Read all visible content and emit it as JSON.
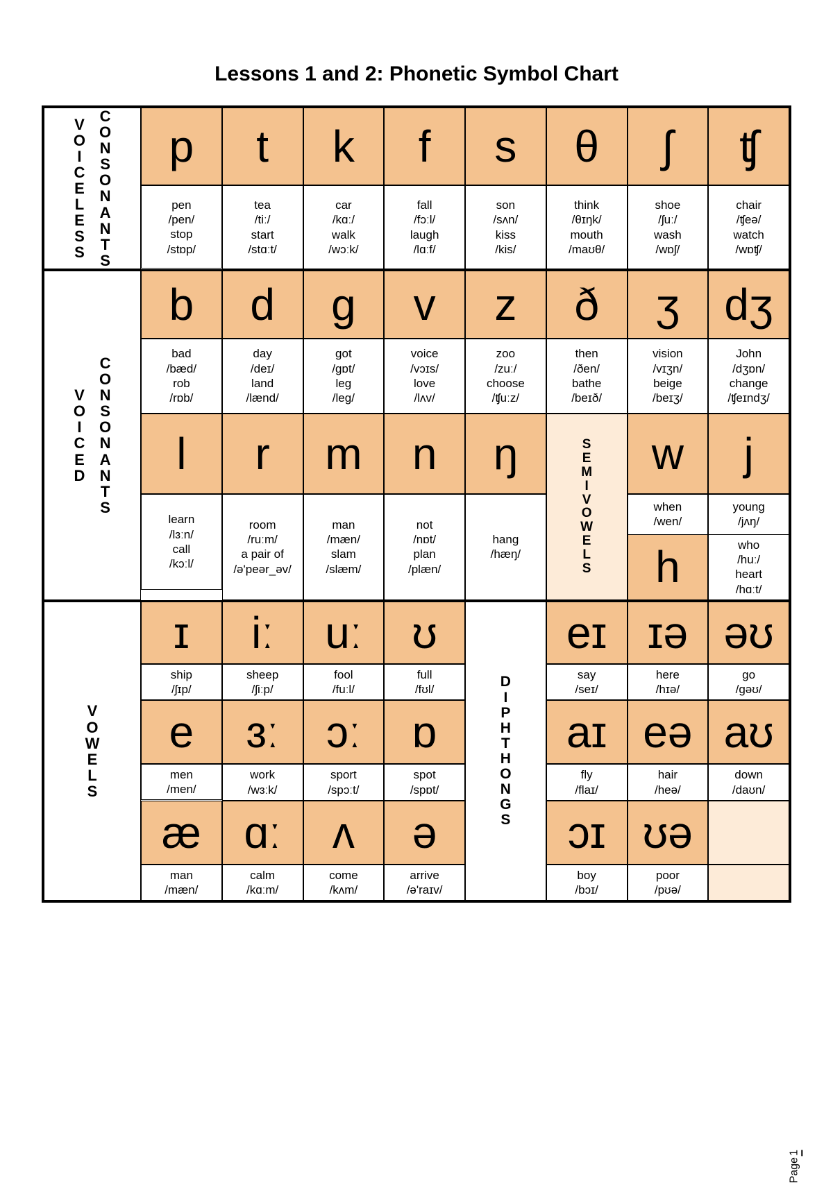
{
  "title": "Lessons 1 and 2: Phonetic Symbol Chart",
  "page_label": "Page",
  "page_number": "1",
  "sections": {
    "voiceless": {
      "left": "VOICELESS",
      "right": "CONSONANTS"
    },
    "voiced": {
      "left": "VOICED",
      "right": "CONSONANTS"
    },
    "vowels": "VOWELS",
    "semivowels": "SEMIVOWELS",
    "diphthongs": "DIPHTHONGS"
  },
  "voiceless": {
    "sym": [
      "p",
      "t",
      "k",
      "f",
      "s",
      "θ",
      "ʃ",
      "ʧ"
    ],
    "ex": [
      [
        "pen",
        "/pen/",
        "stop",
        "/stɒp/"
      ],
      [
        "tea",
        "/tiː/",
        "start",
        "/stɑːt/"
      ],
      [
        "car",
        "/kɑː/",
        "walk",
        "/wɔːk/"
      ],
      [
        "fall",
        "/fɔːl/",
        "laugh",
        "/lɑːf/"
      ],
      [
        "son",
        "/sʌn/",
        "kiss",
        "/kis/"
      ],
      [
        "think",
        "/θɪŋk/",
        "mouth",
        "/maʊθ/"
      ],
      [
        "shoe",
        "/ʃuː/",
        "wash",
        "/wɒʃ/"
      ],
      [
        "chair",
        "/ʧeə/",
        "watch",
        "/wɒʧ/"
      ]
    ]
  },
  "voiced1": {
    "sym": [
      "b",
      "d",
      "g",
      "v",
      "z",
      "ð",
      "ʒ",
      "dʒ"
    ],
    "ex": [
      [
        "bad",
        "/bæd/",
        "rob",
        "/rɒb/"
      ],
      [
        "day",
        "/deɪ/",
        "land",
        "/lænd/"
      ],
      [
        "got",
        "/gɒt/",
        "leg",
        "/leg/"
      ],
      [
        "voice",
        "/vɔɪs/",
        "love",
        "/lʌv/"
      ],
      [
        "zoo",
        "/zuː/",
        "choose",
        "/ʧuːz/"
      ],
      [
        "then",
        "/ðen/",
        "bathe",
        "/beɪð/"
      ],
      [
        "vision",
        "/vɪʒn/",
        "beige",
        "/beɪʒ/"
      ],
      [
        "John",
        "/dʒɒn/",
        "change",
        "/ʧeɪndʒ/"
      ]
    ]
  },
  "voiced2": {
    "sym": [
      "l",
      "r",
      "m",
      "n",
      "ŋ"
    ],
    "ex": [
      [
        "learn",
        "/lɜːn/",
        "call",
        "/kɔːl/"
      ],
      [
        "room",
        "/ruːm/",
        "a pair of",
        "/ə'peər_əv/"
      ],
      [
        "man",
        "/mæn/",
        "slam",
        "/slæm/"
      ],
      [
        "not",
        "/nɒt/",
        "plan",
        "/plæn/"
      ],
      [
        "hang",
        "/hæŋ/"
      ]
    ],
    "wj": {
      "w": {
        "sym": "w",
        "ex": [
          "when",
          "/wen/"
        ]
      },
      "j": {
        "sym": "j",
        "ex": [
          "young",
          "/jʌŋ/"
        ]
      },
      "h": {
        "sym": "h",
        "ex": [
          "who",
          "/huː/",
          "heart",
          "/hɑːt/"
        ]
      }
    }
  },
  "vowels": {
    "r1": {
      "sym": [
        "ɪ",
        "iː",
        "uː",
        "ʊ"
      ],
      "ex": [
        [
          "ship",
          "/ʃɪp/"
        ],
        [
          "sheep",
          "/ʃiːp/"
        ],
        [
          "fool",
          "/fuːl/"
        ],
        [
          "full",
          "/fʊl/"
        ]
      ]
    },
    "r2": {
      "sym": [
        "e",
        "ɜː",
        "ɔː",
        "ɒ"
      ],
      "ex": [
        [
          "men",
          "/men/"
        ],
        [
          "work",
          "/wɜːk/"
        ],
        [
          "sport",
          "/spɔːt/"
        ],
        [
          "spot",
          "/spɒt/"
        ]
      ]
    },
    "r3": {
      "sym": [
        "æ",
        "ɑː",
        "ʌ",
        "ə"
      ],
      "ex": [
        [
          "man",
          "/mæn/"
        ],
        [
          "calm",
          "/kɑːm/"
        ],
        [
          "come",
          "/kʌm/"
        ],
        [
          "arrive",
          "/ə'raɪv/"
        ]
      ]
    }
  },
  "diph": {
    "r1": {
      "sym": [
        "eɪ",
        "ɪə",
        "əʊ"
      ],
      "ex": [
        [
          "say",
          "/seɪ/"
        ],
        [
          "here",
          "/hɪə/"
        ],
        [
          "go",
          "/gəʊ/"
        ]
      ]
    },
    "r2": {
      "sym": [
        "aɪ",
        "eə",
        "aʊ"
      ],
      "ex": [
        [
          "fly",
          "/flaɪ/"
        ],
        [
          "hair",
          "/heə/"
        ],
        [
          "down",
          "/daʊn/"
        ]
      ]
    },
    "r3": {
      "sym": [
        "ɔɪ",
        "ʊə",
        ""
      ],
      "ex": [
        [
          "boy",
          "/bɔɪ/"
        ],
        [
          "poor",
          "/pʊə/"
        ],
        [
          "",
          ""
        ]
      ]
    }
  }
}
